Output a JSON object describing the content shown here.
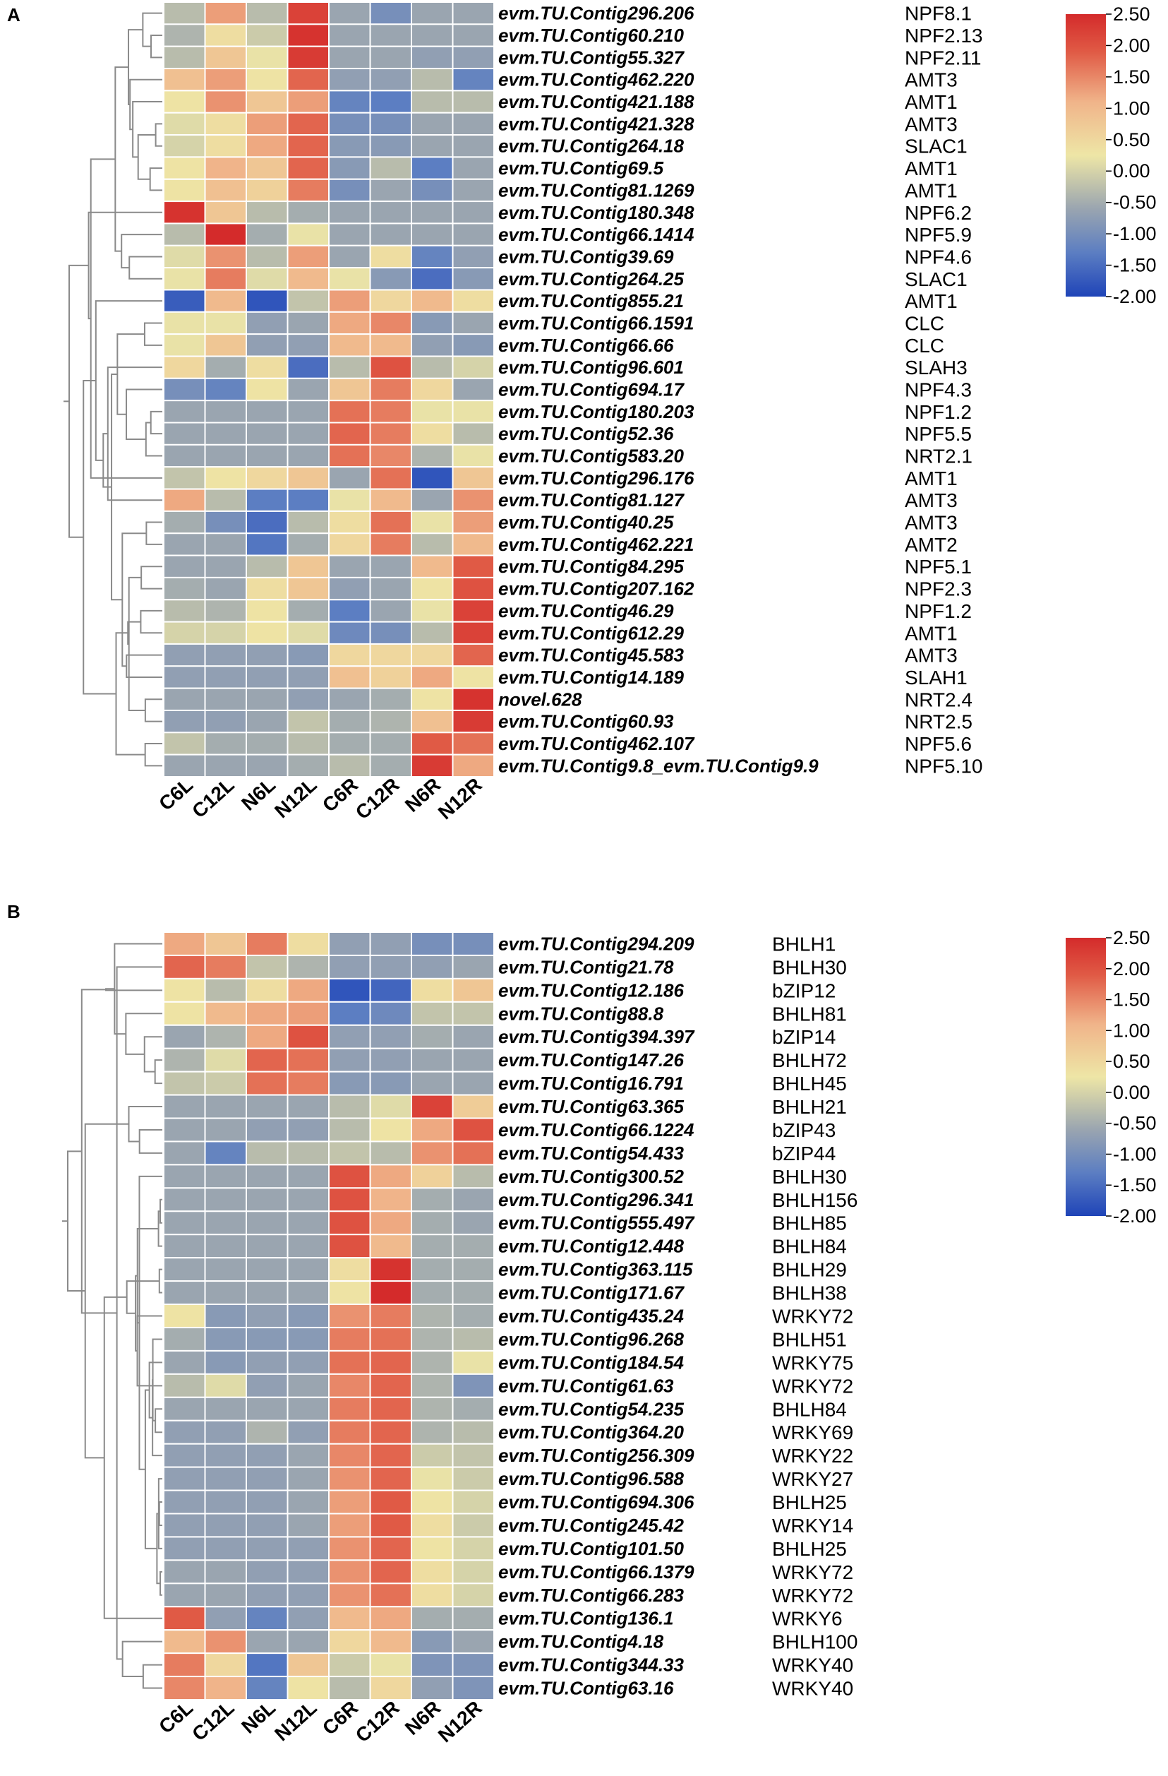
{
  "figure": {
    "colorscale": {
      "min": -2.0,
      "max": 2.5,
      "stops": [
        "#1f44b8",
        "#5c7ec2",
        "#9aa5b0",
        "#eee6a6",
        "#f0b48a",
        "#e05a45",
        "#d42b2b"
      ],
      "stop_values": [
        -2.0,
        -1.3,
        -0.6,
        0.25,
        1.1,
        1.9,
        2.5
      ],
      "tick_labels": [
        "2.50",
        "2.00",
        "1.50",
        "1.00",
        "0.50",
        "0.00",
        "-0.50",
        "-1.00",
        "-1.50",
        "-2.00"
      ]
    }
  },
  "chart_data": [
    {
      "type": "heatmap",
      "panel": "A",
      "columns": [
        "C6L",
        "C12L",
        "N6L",
        "N12L",
        "C6R",
        "C12R",
        "N6R",
        "N12R"
      ],
      "rows": [
        {
          "id": "evm.TU.Contig296.206",
          "name": "NPF8.1",
          "values": [
            -0.3,
            1.3,
            -0.3,
            2.2,
            -0.6,
            -1.0,
            -0.6,
            -0.6
          ]
        },
        {
          "id": "evm.TU.Contig60.210",
          "name": "NPF2.13",
          "values": [
            -0.4,
            0.4,
            -0.1,
            2.4,
            -0.6,
            -0.6,
            -0.6,
            -0.6
          ]
        },
        {
          "id": "evm.TU.Contig55.327",
          "name": "NPF2.11",
          "values": [
            -0.3,
            0.8,
            0.2,
            2.3,
            -0.6,
            -0.6,
            -0.7,
            -0.7
          ]
        },
        {
          "id": "evm.TU.Contig462.220",
          "name": "AMT3",
          "values": [
            0.9,
            1.3,
            0.3,
            1.8,
            -0.7,
            -0.7,
            -0.3,
            -1.2
          ]
        },
        {
          "id": "evm.TU.Contig421.188",
          "name": "AMT1",
          "values": [
            0.3,
            1.4,
            0.8,
            1.3,
            -1.2,
            -1.3,
            -0.3,
            -0.3
          ]
        },
        {
          "id": "evm.TU.Contig421.328",
          "name": "AMT3",
          "values": [
            0.1,
            0.4,
            1.3,
            1.8,
            -1.0,
            -1.0,
            -0.6,
            -0.6
          ]
        },
        {
          "id": "evm.TU.Contig264.18",
          "name": "SLAC1",
          "values": [
            0.0,
            0.4,
            1.2,
            1.8,
            -0.8,
            -0.8,
            -0.6,
            -0.6
          ]
        },
        {
          "id": "evm.TU.Contig69.5",
          "name": "AMT1",
          "values": [
            0.3,
            1.1,
            0.8,
            1.8,
            -0.8,
            -0.3,
            -1.3,
            -0.6
          ]
        },
        {
          "id": "evm.TU.Contig81.1269",
          "name": "AMT1",
          "values": [
            0.3,
            0.9,
            0.6,
            1.6,
            -1.0,
            -0.6,
            -1.0,
            -0.6
          ]
        },
        {
          "id": "evm.TU.Contig180.348",
          "name": "NPF6.2",
          "values": [
            2.4,
            0.8,
            -0.3,
            -0.5,
            -0.6,
            -0.6,
            -0.6,
            -0.6
          ]
        },
        {
          "id": "evm.TU.Contig66.1414",
          "name": "NPF5.9",
          "values": [
            -0.3,
            2.5,
            -0.5,
            0.2,
            -0.6,
            -0.6,
            -0.6,
            -0.6
          ]
        },
        {
          "id": "evm.TU.Contig39.69",
          "name": "NPF4.6",
          "values": [
            0.1,
            1.4,
            -0.3,
            1.3,
            -0.6,
            0.4,
            -1.2,
            -0.7
          ]
        },
        {
          "id": "evm.TU.Contig264.25",
          "name": "SLAC1",
          "values": [
            0.2,
            1.6,
            0.1,
            1.0,
            0.2,
            -0.8,
            -1.5,
            -0.8
          ]
        },
        {
          "id": "evm.TU.Contig855.21",
          "name": "AMT1",
          "values": [
            -1.7,
            1.0,
            -1.8,
            -0.2,
            1.3,
            0.5,
            1.0,
            0.4
          ]
        },
        {
          "id": "evm.TU.Contig66.1591",
          "name": "CLC",
          "values": [
            0.2,
            0.2,
            -0.7,
            -0.6,
            1.2,
            1.5,
            -0.8,
            -0.6
          ]
        },
        {
          "id": "evm.TU.Contig66.66",
          "name": "CLC",
          "values": [
            0.2,
            0.8,
            -0.7,
            -0.7,
            1.0,
            1.0,
            -0.7,
            -0.8
          ]
        },
        {
          "id": "evm.TU.Contig96.601",
          "name": "SLAH3",
          "values": [
            0.5,
            -0.5,
            0.4,
            -1.5,
            -0.3,
            2.0,
            -0.3,
            0.0
          ]
        },
        {
          "id": "evm.TU.Contig694.17",
          "name": "NPF4.3",
          "values": [
            -1.0,
            -1.2,
            0.3,
            -0.6,
            0.8,
            1.6,
            0.5,
            -0.6
          ]
        },
        {
          "id": "evm.TU.Contig180.203",
          "name": "NPF1.2",
          "values": [
            -0.6,
            -0.6,
            -0.6,
            -0.6,
            1.7,
            1.6,
            0.2,
            0.2
          ]
        },
        {
          "id": "evm.TU.Contig52.36",
          "name": "NPF5.5",
          "values": [
            -0.6,
            -0.6,
            -0.6,
            -0.6,
            1.8,
            1.6,
            0.4,
            -0.3
          ]
        },
        {
          "id": "evm.TU.Contig583.20",
          "name": "NRT2.1",
          "values": [
            -0.6,
            -0.6,
            -0.6,
            -0.6,
            1.7,
            1.5,
            -0.4,
            0.2
          ]
        },
        {
          "id": "evm.TU.Contig296.176",
          "name": "AMT1",
          "values": [
            -0.2,
            0.3,
            0.5,
            0.8,
            -0.6,
            1.7,
            -1.8,
            0.8
          ]
        },
        {
          "id": "evm.TU.Contig81.127",
          "name": "AMT3",
          "values": [
            1.2,
            -0.3,
            -1.3,
            -1.3,
            0.2,
            1.0,
            -0.6,
            1.4
          ]
        },
        {
          "id": "evm.TU.Contig40.25",
          "name": "AMT3",
          "values": [
            -0.5,
            -1.0,
            -1.5,
            -0.3,
            0.4,
            1.7,
            0.2,
            1.3
          ]
        },
        {
          "id": "evm.TU.Contig462.221",
          "name": "AMT2",
          "values": [
            -0.6,
            -0.6,
            -1.4,
            -0.5,
            0.5,
            1.6,
            -0.3,
            1.0
          ]
        },
        {
          "id": "evm.TU.Contig84.295",
          "name": "NPF5.1",
          "values": [
            -0.6,
            -0.6,
            -0.3,
            0.8,
            -0.6,
            -0.6,
            1.0,
            1.9
          ]
        },
        {
          "id": "evm.TU.Contig207.162",
          "name": "NPF2.3",
          "values": [
            -0.5,
            -0.6,
            0.4,
            0.8,
            -0.7,
            -0.6,
            0.3,
            2.0
          ]
        },
        {
          "id": "evm.TU.Contig46.29",
          "name": "NPF1.2",
          "values": [
            -0.3,
            -0.4,
            0.3,
            -0.5,
            -1.3,
            -0.6,
            0.2,
            2.2
          ]
        },
        {
          "id": "evm.TU.Contig612.29",
          "name": "AMT1",
          "values": [
            0.0,
            0.0,
            0.3,
            0.1,
            -1.1,
            -1.0,
            -0.3,
            2.2
          ]
        },
        {
          "id": "evm.TU.Contig45.583",
          "name": "AMT3",
          "values": [
            -0.7,
            -0.7,
            -0.7,
            -0.8,
            0.5,
            0.5,
            0.5,
            1.8
          ]
        },
        {
          "id": "evm.TU.Contig14.189",
          "name": "SLAH1",
          "values": [
            -0.7,
            -0.7,
            -0.7,
            -0.7,
            0.9,
            0.6,
            1.2,
            0.3
          ]
        },
        {
          "id": "novel.628",
          "name": "NRT2.4",
          "values": [
            -0.6,
            -0.6,
            -0.6,
            -0.7,
            -0.6,
            -0.5,
            0.3,
            2.4
          ]
        },
        {
          "id": "evm.TU.Contig60.93",
          "name": "NRT2.5",
          "values": [
            -0.7,
            -0.7,
            -0.6,
            -0.2,
            -0.5,
            -0.4,
            0.9,
            2.3
          ]
        },
        {
          "id": "evm.TU.Contig462.107",
          "name": "NPF5.6",
          "values": [
            -0.2,
            -0.5,
            -0.5,
            -0.3,
            -0.5,
            -0.5,
            1.9,
            1.7
          ]
        },
        {
          "id": "evm.TU.Contig9.8_evm.TU.Contig9.9",
          "name": "NPF5.10",
          "values": [
            -0.6,
            -0.6,
            -0.6,
            -0.5,
            -0.3,
            -0.5,
            2.3,
            1.2
          ]
        }
      ],
      "colorbar_min": -2.0,
      "colorbar_max": 2.5
    },
    {
      "type": "heatmap",
      "panel": "B",
      "columns": [
        "C6L",
        "C12L",
        "N6L",
        "N12L",
        "C6R",
        "C12R",
        "N6R",
        "N12R"
      ],
      "rows": [
        {
          "id": "evm.TU.Contig294.209",
          "name": "BHLH1",
          "values": [
            1.2,
            0.8,
            1.6,
            0.4,
            -0.7,
            -0.7,
            -1.0,
            -1.0
          ]
        },
        {
          "id": "evm.TU.Contig21.78",
          "name": "BHLH30",
          "values": [
            1.8,
            1.6,
            -0.2,
            -0.4,
            -0.7,
            -0.7,
            -0.7,
            -0.6
          ]
        },
        {
          "id": "evm.TU.Contig12.186",
          "name": "bZIP12",
          "values": [
            0.3,
            -0.3,
            0.4,
            1.2,
            -1.8,
            -1.6,
            0.4,
            0.8
          ]
        },
        {
          "id": "evm.TU.Contig88.8",
          "name": "BHLH81",
          "values": [
            0.3,
            1.0,
            1.2,
            1.3,
            -1.3,
            -1.1,
            -0.2,
            -0.2
          ]
        },
        {
          "id": "evm.TU.Contig394.397",
          "name": "bZIP14",
          "values": [
            -0.6,
            -0.4,
            1.2,
            2.0,
            -0.7,
            -0.7,
            -0.5,
            -0.6
          ]
        },
        {
          "id": "evm.TU.Contig147.26",
          "name": "BHLH72",
          "values": [
            -0.4,
            0.1,
            1.8,
            1.7,
            -0.7,
            -0.7,
            -0.6,
            -0.6
          ]
        },
        {
          "id": "evm.TU.Contig16.791",
          "name": "BHLH45",
          "values": [
            -0.2,
            -0.1,
            1.7,
            1.6,
            -0.8,
            -0.8,
            -0.6,
            -0.6
          ]
        },
        {
          "id": "evm.TU.Contig63.365",
          "name": "BHLH21",
          "values": [
            -0.6,
            -0.6,
            -0.6,
            -0.6,
            -0.3,
            0.1,
            2.2,
            0.7
          ]
        },
        {
          "id": "evm.TU.Contig66.1224",
          "name": "bZIP43",
          "values": [
            -0.6,
            -0.6,
            -0.7,
            -0.7,
            -0.3,
            0.3,
            1.2,
            2.0
          ]
        },
        {
          "id": "evm.TU.Contig54.433",
          "name": "bZIP44",
          "values": [
            -0.6,
            -1.2,
            -0.3,
            -0.3,
            -0.2,
            -0.3,
            1.4,
            1.7
          ]
        },
        {
          "id": "evm.TU.Contig300.52",
          "name": "BHLH30",
          "values": [
            -0.6,
            -0.6,
            -0.6,
            -0.6,
            2.0,
            1.2,
            0.6,
            -0.3
          ]
        },
        {
          "id": "evm.TU.Contig296.341",
          "name": "BHLH156",
          "values": [
            -0.6,
            -0.6,
            -0.6,
            -0.6,
            2.0,
            1.1,
            -0.5,
            -0.6
          ]
        },
        {
          "id": "evm.TU.Contig555.497",
          "name": "BHLH85",
          "values": [
            -0.6,
            -0.6,
            -0.6,
            -0.6,
            2.0,
            1.2,
            -0.5,
            -0.6
          ]
        },
        {
          "id": "evm.TU.Contig12.448",
          "name": "BHLH84",
          "values": [
            -0.6,
            -0.6,
            -0.6,
            -0.6,
            2.0,
            1.0,
            -0.5,
            -0.5
          ]
        },
        {
          "id": "evm.TU.Contig363.115",
          "name": "BHLH29",
          "values": [
            -0.6,
            -0.6,
            -0.6,
            -0.6,
            0.4,
            2.4,
            -0.5,
            -0.5
          ]
        },
        {
          "id": "evm.TU.Contig171.67",
          "name": "BHLH38",
          "values": [
            -0.6,
            -0.6,
            -0.6,
            -0.6,
            0.3,
            2.5,
            -0.5,
            -0.5
          ]
        },
        {
          "id": "evm.TU.Contig435.24",
          "name": "WRKY72",
          "values": [
            0.3,
            -0.8,
            -0.7,
            -0.8,
            1.4,
            1.6,
            -0.4,
            -0.5
          ]
        },
        {
          "id": "evm.TU.Contig96.268",
          "name": "BHLH51",
          "values": [
            -0.5,
            -0.8,
            -0.8,
            -0.8,
            1.6,
            1.7,
            -0.4,
            -0.3
          ]
        },
        {
          "id": "evm.TU.Contig184.54",
          "name": "WRKY75",
          "values": [
            -0.6,
            -0.8,
            -0.7,
            -0.7,
            1.7,
            1.8,
            -0.4,
            0.2
          ]
        },
        {
          "id": "evm.TU.Contig61.63",
          "name": "WRKY72",
          "values": [
            -0.3,
            0.1,
            -0.7,
            -0.6,
            1.5,
            1.8,
            -0.4,
            -0.9
          ]
        },
        {
          "id": "evm.TU.Contig54.235",
          "name": "BHLH84",
          "values": [
            -0.6,
            -0.6,
            -0.6,
            -0.6,
            1.6,
            1.8,
            -0.4,
            -0.5
          ]
        },
        {
          "id": "evm.TU.Contig364.20",
          "name": "WRKY69",
          "values": [
            -0.7,
            -0.7,
            -0.4,
            -0.7,
            1.6,
            1.8,
            -0.4,
            -0.3
          ]
        },
        {
          "id": "evm.TU.Contig256.309",
          "name": "WRKY22",
          "values": [
            -0.7,
            -0.7,
            -0.7,
            -0.6,
            1.5,
            1.8,
            -0.1,
            -0.2
          ]
        },
        {
          "id": "evm.TU.Contig96.588",
          "name": "WRKY27",
          "values": [
            -0.7,
            -0.7,
            -0.7,
            -0.6,
            1.4,
            1.8,
            0.2,
            -0.1
          ]
        },
        {
          "id": "evm.TU.Contig694.306",
          "name": "BHLH25",
          "values": [
            -0.7,
            -0.7,
            -0.7,
            -0.6,
            1.3,
            1.9,
            0.3,
            0.0
          ]
        },
        {
          "id": "evm.TU.Contig245.42",
          "name": "WRKY14",
          "values": [
            -0.7,
            -0.7,
            -0.7,
            -0.6,
            1.3,
            1.9,
            0.4,
            -0.1
          ]
        },
        {
          "id": "evm.TU.Contig101.50",
          "name": "BHLH25",
          "values": [
            -0.7,
            -0.7,
            -0.7,
            -0.7,
            1.4,
            1.8,
            0.3,
            0.0
          ]
        },
        {
          "id": "evm.TU.Contig66.1379",
          "name": "WRKY72",
          "values": [
            -0.6,
            -0.6,
            -0.7,
            -0.7,
            1.4,
            1.8,
            0.4,
            0.0
          ]
        },
        {
          "id": "evm.TU.Contig66.283",
          "name": "WRKY72",
          "values": [
            -0.6,
            -0.6,
            -0.7,
            -0.7,
            1.4,
            1.7,
            0.4,
            0.0
          ]
        },
        {
          "id": "evm.TU.Contig136.1",
          "name": "WRKY6",
          "values": [
            1.9,
            -0.7,
            -1.2,
            -0.7,
            1.0,
            1.2,
            -0.5,
            -0.5
          ]
        },
        {
          "id": "evm.TU.Contig4.18",
          "name": "BHLH100",
          "values": [
            1.0,
            1.4,
            -0.6,
            -0.6,
            0.5,
            1.0,
            -0.8,
            -0.6
          ]
        },
        {
          "id": "evm.TU.Contig344.33",
          "name": "WRKY40",
          "values": [
            1.6,
            0.5,
            -1.4,
            0.8,
            -0.1,
            0.2,
            -0.9,
            -0.9
          ]
        },
        {
          "id": "evm.TU.Contig63.16",
          "name": "WRKY40",
          "values": [
            1.5,
            1.1,
            -1.2,
            0.3,
            -0.3,
            0.5,
            -0.7,
            -0.9
          ]
        }
      ],
      "colorbar_min": -2.0,
      "colorbar_max": 2.5
    }
  ]
}
